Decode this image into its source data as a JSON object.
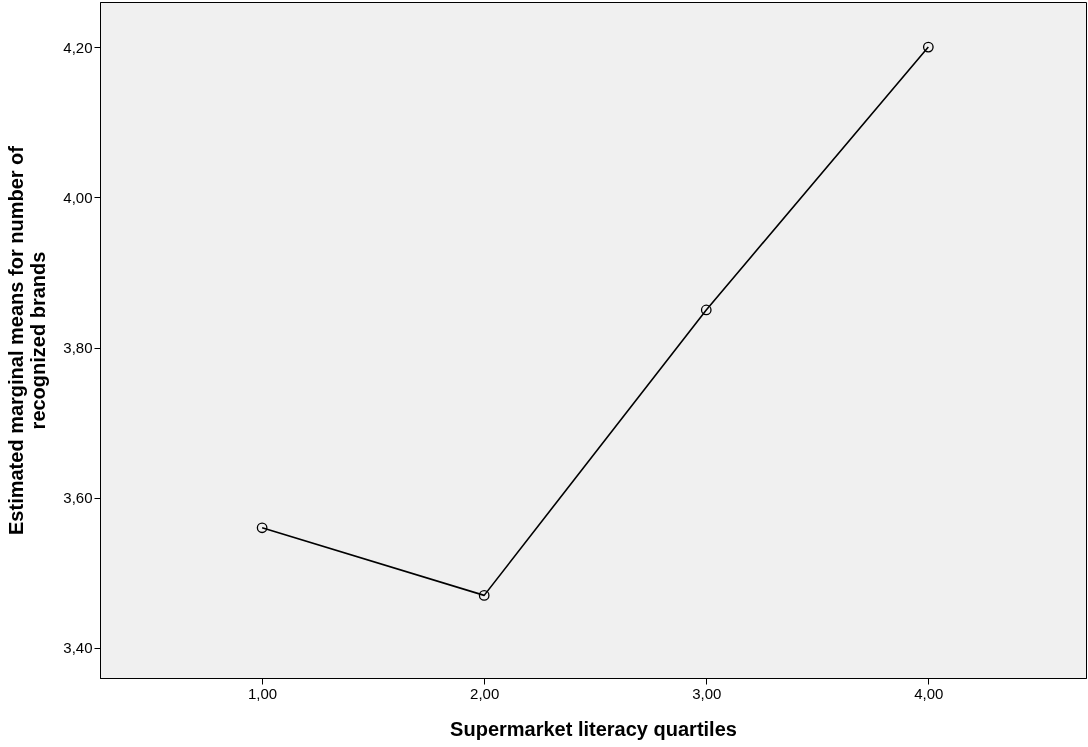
{
  "chart_data": {
    "type": "line",
    "xlabel": "Supermarket literacy quartiles",
    "ylabel": "Estimated marginal means for number of\nrecognized brands",
    "x": [
      1,
      2,
      3,
      4
    ],
    "series": [
      {
        "color": "#000000",
        "values": [
          3.56,
          3.47,
          3.85,
          4.2
        ]
      }
    ],
    "xlim": [
      0.27,
      4.71
    ],
    "ylim": [
      3.36,
      4.26
    ],
    "xticks": [
      {
        "value": 1,
        "label": "1,00"
      },
      {
        "value": 2,
        "label": "2,00"
      },
      {
        "value": 3,
        "label": "3,00"
      },
      {
        "value": 4,
        "label": "4,00"
      }
    ],
    "yticks": [
      {
        "value": 3.4,
        "label": "3,40"
      },
      {
        "value": 3.6,
        "label": "3,60"
      },
      {
        "value": 3.8,
        "label": "3,80"
      },
      {
        "value": 4.0,
        "label": "4,00"
      },
      {
        "value": 4.2,
        "label": "4,20"
      }
    ],
    "grid": false,
    "marker": "circle",
    "line_style": "solid"
  }
}
